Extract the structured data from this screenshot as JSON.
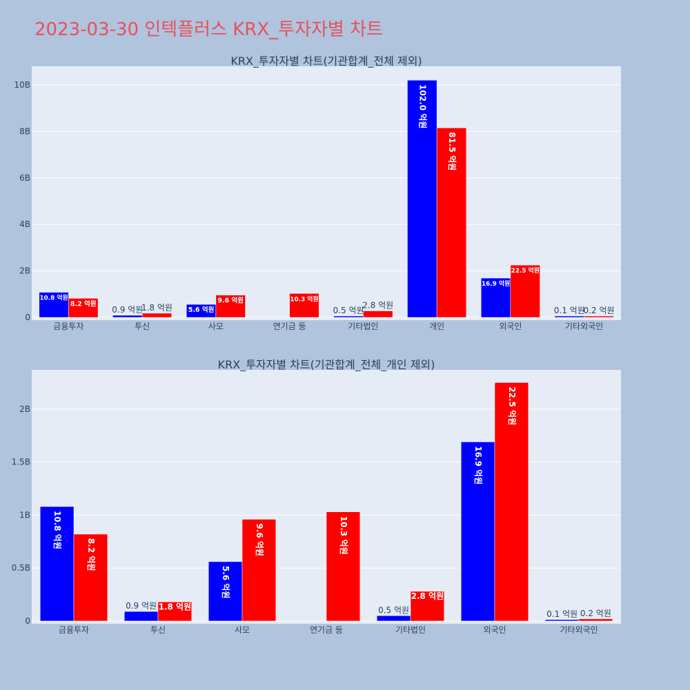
{
  "title": "2023-03-30 인텍플러스 KRX_투자자별 차트",
  "colors": {
    "buy": "#0000ff",
    "sell": "#ff0000",
    "plot_bg": "#e5ecf6",
    "page_bg": "#b0c4de"
  },
  "chart_data": [
    {
      "type": "bar",
      "title": "KRX_투자자별 차트(기관합계_전체 제외)",
      "categories": [
        "금융투자",
        "투신",
        "사모",
        "연기금 등",
        "기타법인",
        "개인",
        "외국인",
        "기타외국인"
      ],
      "series": [
        {
          "values": [
            1.08,
            0.09,
            0.56,
            0,
            0.05,
            10.2,
            1.69,
            0.01
          ],
          "labels": [
            "10.8 억원",
            "0.9 억원",
            "5.6 억원",
            "",
            "0.5 억원",
            "102.0 억원",
            "16.9 억원",
            "0.1 억원"
          ]
        },
        {
          "values": [
            0.82,
            0.18,
            0.96,
            1.03,
            0.28,
            8.15,
            2.25,
            0.02
          ],
          "labels": [
            "8.2 억원",
            "1.8 억원",
            "9.6 억원",
            "10.3 억원",
            "2.8 억원",
            "81.5 억원",
            "22.5 억원",
            "0.2 억원"
          ]
        }
      ],
      "ylim": [
        0,
        10.8
      ],
      "yticks": [
        0,
        2,
        4,
        6,
        8,
        10
      ],
      "yticklabels": [
        "0",
        "2B",
        "4B",
        "6B",
        "8B",
        "10B"
      ],
      "grid": true
    },
    {
      "type": "bar",
      "title": "KRX_투자자별 차트(기관합계_전체_개인 제외)",
      "categories": [
        "금융투자",
        "투신",
        "사모",
        "연기금 등",
        "기타법인",
        "외국인",
        "기타외국인"
      ],
      "series": [
        {
          "values": [
            1.08,
            0.09,
            0.56,
            0,
            0.05,
            1.69,
            0.01
          ],
          "labels": [
            "10.8 억원",
            "0.9 억원",
            "5.6 억원",
            "",
            "0.5 억원",
            "16.9 억원",
            "0.1 억원"
          ]
        },
        {
          "values": [
            0.82,
            0.18,
            0.96,
            1.03,
            0.28,
            2.25,
            0.02
          ],
          "labels": [
            "8.2 억원",
            "1.8 억원",
            "9.6 억원",
            "10.3 억원",
            "2.8 억원",
            "22.5 억원",
            "0.2 억원"
          ]
        }
      ],
      "ylim": [
        0,
        2.37
      ],
      "yticks": [
        0,
        0.5,
        1,
        1.5,
        2
      ],
      "yticklabels": [
        "0",
        "0.5B",
        "1B",
        "1.5B",
        "2B"
      ],
      "grid": true
    }
  ]
}
